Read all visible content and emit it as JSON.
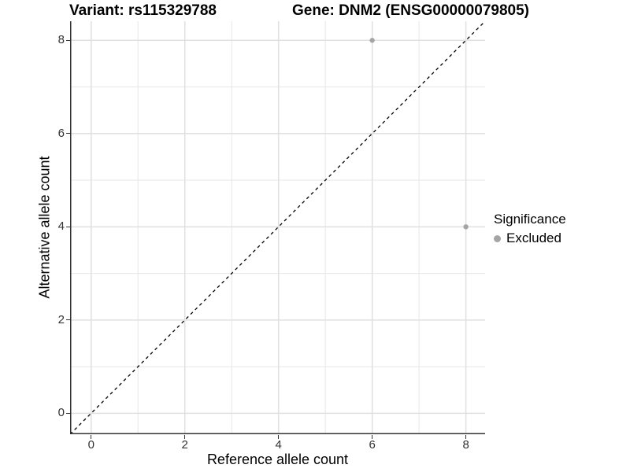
{
  "titles": {
    "variant": "Variant: rs115329788",
    "gene": "Gene: DNM2 (ENSG00000079805)"
  },
  "axes": {
    "x": {
      "label": "Reference allele count"
    },
    "y": {
      "label": "Alternative allele count"
    }
  },
  "legend": {
    "title": "Significance",
    "items": [
      {
        "label": "Excluded",
        "color": "#a5a5a5"
      }
    ]
  },
  "colors": {
    "background": "#ffffff",
    "grid_major": "#e0e0e0",
    "grid_minor": "#e7e7e7",
    "axis_line": "#333333",
    "tick_label": "#333333",
    "reference_line": "#000000",
    "point_excluded": "#a5a5a5"
  },
  "chart_data": {
    "type": "scatter",
    "title": "Variant: rs115329788 | Gene: DNM2 (ENSG00000079805)",
    "xlabel": "Reference allele count",
    "ylabel": "Alternative allele count",
    "xlim": [
      -0.45,
      8.41
    ],
    "ylim": [
      -0.45,
      8.41
    ],
    "x_ticks": [
      0,
      2,
      4,
      6,
      8
    ],
    "y_ticks": [
      0,
      2,
      4,
      6,
      8
    ],
    "minor_ticks": [
      1,
      3,
      5,
      7
    ],
    "grid": "major-and-minor",
    "legend_position": "right",
    "series": [
      {
        "name": "Excluded",
        "color": "#a5a5a5",
        "point_radius": 3.2,
        "points": [
          [
            6,
            8
          ],
          [
            8,
            4
          ]
        ]
      }
    ],
    "reference_line": {
      "kind": "identity",
      "from": -0.45,
      "to": 8.41,
      "dash": "4 4",
      "color": "#000000"
    }
  }
}
